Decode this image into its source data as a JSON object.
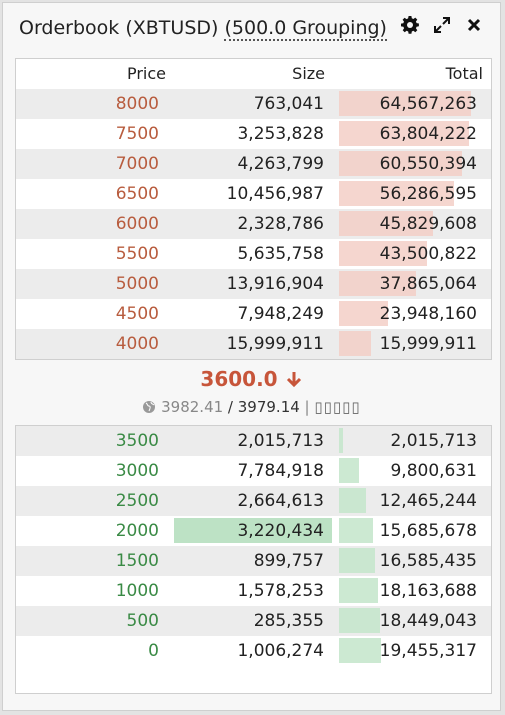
{
  "header": {
    "title": "Orderbook (XBTUSD)",
    "grouping": "(500.0 Grouping)",
    "icons": [
      "gear-icon",
      "expand-icon",
      "close-icon"
    ]
  },
  "columns": {
    "price": "Price",
    "size": "Size",
    "total": "Total"
  },
  "asks": [
    {
      "price": "8000",
      "size": "763,041",
      "total": "64,567,263",
      "depth": 0.94
    },
    {
      "price": "7500",
      "size": "3,253,828",
      "total": "63,804,222",
      "depth": 0.93
    },
    {
      "price": "7000",
      "size": "4,263,799",
      "total": "60,550,394",
      "depth": 0.88
    },
    {
      "price": "6500",
      "size": "10,456,987",
      "total": "56,286,595",
      "depth": 0.82
    },
    {
      "price": "6000",
      "size": "2,328,786",
      "total": "45,829,608",
      "depth": 0.67
    },
    {
      "price": "5500",
      "size": "5,635,758",
      "total": "43,500,822",
      "depth": 0.63
    },
    {
      "price": "5000",
      "size": "13,916,904",
      "total": "37,865,064",
      "depth": 0.55
    },
    {
      "price": "4500",
      "size": "7,948,249",
      "total": "23,948,160",
      "depth": 0.35
    },
    {
      "price": "4000",
      "size": "15,999,911",
      "total": "15,999,911",
      "depth": 0.23
    }
  ],
  "mid": {
    "price": "3600.0",
    "index": "3982.41",
    "separator": " / ",
    "mark": "3979.14",
    "pipe": " | ",
    "boxes": "▯▯▯▯▯"
  },
  "bids": [
    {
      "price": "3500",
      "size": "2,015,713",
      "total": "2,015,713",
      "depth": 0.03,
      "size_fill": 0
    },
    {
      "price": "3000",
      "size": "7,784,918",
      "total": "9,800,631",
      "depth": 0.14,
      "size_fill": 0
    },
    {
      "price": "2500",
      "size": "2,664,613",
      "total": "12,465,244",
      "depth": 0.19,
      "size_fill": 0
    },
    {
      "price": "2000",
      "size": "3,220,434",
      "total": "15,685,678",
      "depth": 0.24,
      "size_fill": 1
    },
    {
      "price": "1500",
      "size": "899,757",
      "total": "16,585,435",
      "depth": 0.26,
      "size_fill": 0
    },
    {
      "price": "1000",
      "size": "1,578,253",
      "total": "18,163,688",
      "depth": 0.28,
      "size_fill": 0
    },
    {
      "price": "500",
      "size": "285,355",
      "total": "18,449,043",
      "depth": 0.29,
      "size_fill": 0
    },
    {
      "price": "0",
      "size": "1,006,274",
      "total": "19,455,317",
      "depth": 0.3,
      "size_fill": 0
    }
  ]
}
